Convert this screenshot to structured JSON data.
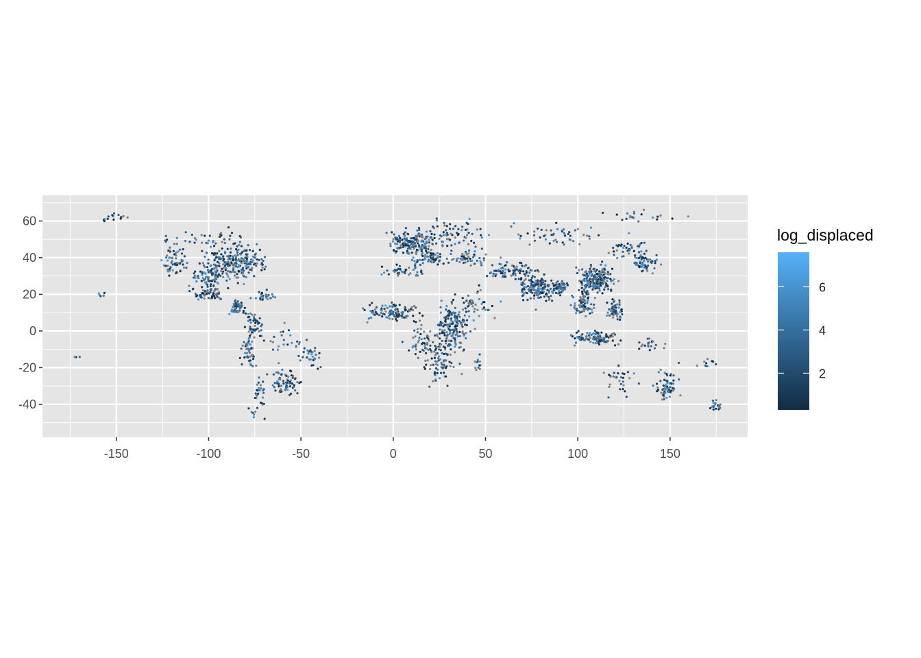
{
  "chart_data": {
    "type": "scatter",
    "title": "",
    "xlabel": "",
    "ylabel": "",
    "xlim": [
      -190,
      192
    ],
    "ylim": [
      -58,
      74
    ],
    "x_ticks": [
      -150,
      -100,
      -50,
      0,
      50,
      100,
      150
    ],
    "y_ticks": [
      -40,
      -20,
      0,
      20,
      40,
      60
    ],
    "x_tick_labels": [
      "-150",
      "-100",
      "-50",
      "0",
      "50",
      "100",
      "150"
    ],
    "y_tick_labels": [
      "-40",
      "-20",
      "0",
      "20",
      "40",
      "60"
    ],
    "grid": true,
    "legend": {
      "title": "log_displaced",
      "placement": "right",
      "range": [
        0.3,
        7.6
      ],
      "breaks": [
        2,
        4,
        6
      ],
      "break_labels": [
        "2",
        "4",
        "6"
      ],
      "low_color": "#132B43",
      "high_color": "#56B1F7",
      "na_color": "#7f7f7f"
    },
    "colors": {
      "panel_background": "#e5e5e5",
      "grid": "#ffffff",
      "tick_text": "#4d4d4d"
    },
    "series": [
      {
        "clusters": [
          {
            "lon": -85,
            "lat": 38,
            "spread": [
              12,
              7
            ],
            "n": 220
          },
          {
            "lon": -100,
            "lat": 30,
            "spread": [
              8,
              6
            ],
            "n": 90
          },
          {
            "lon": -118,
            "lat": 38,
            "spread": [
              5,
              7
            ],
            "n": 60
          },
          {
            "lon": -100,
            "lat": 20,
            "spread": [
              6,
              3
            ],
            "n": 60
          },
          {
            "lon": -85,
            "lat": 13,
            "spread": [
              4,
              3
            ],
            "n": 50
          },
          {
            "lon": -75,
            "lat": 5,
            "spread": [
              4,
              5
            ],
            "n": 40
          },
          {
            "lon": -70,
            "lat": 19,
            "spread": [
              5,
              2
            ],
            "n": 25
          },
          {
            "lon": -78,
            "lat": -10,
            "spread": [
              3,
              9
            ],
            "n": 50
          },
          {
            "lon": -72,
            "lat": -32,
            "spread": [
              2,
              6
            ],
            "n": 25
          },
          {
            "lon": -58,
            "lat": -28,
            "spread": [
              6,
              6
            ],
            "n": 70
          },
          {
            "lon": -45,
            "lat": -14,
            "spread": [
              6,
              6
            ],
            "n": 30
          },
          {
            "lon": -60,
            "lat": -5,
            "spread": [
              10,
              6
            ],
            "n": 25
          },
          {
            "lon": -75,
            "lat": -45,
            "spread": [
              3,
              5
            ],
            "n": 8
          },
          {
            "lon": -100,
            "lat": 50,
            "spread": [
              20,
              5
            ],
            "n": 40
          },
          {
            "lon": -150,
            "lat": 62,
            "spread": [
              6,
              2
            ],
            "n": 15
          },
          {
            "lon": -157,
            "lat": 20,
            "spread": [
              2,
              1
            ],
            "n": 6
          },
          {
            "lon": 10,
            "lat": 48,
            "spread": [
              10,
              5
            ],
            "n": 150
          },
          {
            "lon": 30,
            "lat": 52,
            "spread": [
              18,
              7
            ],
            "n": 90
          },
          {
            "lon": 20,
            "lat": 40,
            "spread": [
              10,
              3
            ],
            "n": 60
          },
          {
            "lon": 40,
            "lat": 40,
            "spread": [
              8,
              3
            ],
            "n": 50
          },
          {
            "lon": 5,
            "lat": 33,
            "spread": [
              8,
              3
            ],
            "n": 40
          },
          {
            "lon": 0,
            "lat": 10,
            "spread": [
              12,
              4
            ],
            "n": 110
          },
          {
            "lon": 33,
            "lat": 3,
            "spread": [
              7,
              10
            ],
            "n": 160
          },
          {
            "lon": 25,
            "lat": -15,
            "spread": [
              8,
              10
            ],
            "n": 100
          },
          {
            "lon": 15,
            "lat": -5,
            "spread": [
              6,
              8
            ],
            "n": 40
          },
          {
            "lon": 45,
            "lat": 15,
            "spread": [
              8,
              8
            ],
            "n": 40
          },
          {
            "lon": 46,
            "lat": -19,
            "spread": [
              2,
              5
            ],
            "n": 12
          },
          {
            "lon": 65,
            "lat": 33,
            "spread": [
              10,
              4
            ],
            "n": 90
          },
          {
            "lon": 78,
            "lat": 23,
            "spread": [
              7,
              6
            ],
            "n": 140
          },
          {
            "lon": 90,
            "lat": 24,
            "spread": [
              4,
              3
            ],
            "n": 60
          },
          {
            "lon": 110,
            "lat": 28,
            "spread": [
              8,
              6
            ],
            "n": 200
          },
          {
            "lon": 103,
            "lat": 15,
            "spread": [
              5,
              5
            ],
            "n": 70
          },
          {
            "lon": 120,
            "lat": 12,
            "spread": [
              3,
              5
            ],
            "n": 60
          },
          {
            "lon": 110,
            "lat": -4,
            "spread": [
              10,
              3
            ],
            "n": 100
          },
          {
            "lon": 137,
            "lat": 37,
            "spread": [
              5,
              4
            ],
            "n": 50
          },
          {
            "lon": 127,
            "lat": 45,
            "spread": [
              8,
              4
            ],
            "n": 40
          },
          {
            "lon": 90,
            "lat": 52,
            "spread": [
              25,
              5
            ],
            "n": 50
          },
          {
            "lon": 148,
            "lat": -30,
            "spread": [
              5,
              6
            ],
            "n": 70
          },
          {
            "lon": 122,
            "lat": -27,
            "spread": [
              8,
              6
            ],
            "n": 30
          },
          {
            "lon": 140,
            "lat": -8,
            "spread": [
              7,
              3
            ],
            "n": 20
          },
          {
            "lon": 175,
            "lat": -40,
            "spread": [
              3,
              3
            ],
            "n": 20
          },
          {
            "lon": 168,
            "lat": -17,
            "spread": [
              8,
              3
            ],
            "n": 10
          },
          {
            "lon": -172,
            "lat": -14,
            "spread": [
              2,
              1
            ],
            "n": 3
          },
          {
            "lon": 135,
            "lat": 62,
            "spread": [
              15,
              4
            ],
            "n": 20
          }
        ]
      }
    ]
  }
}
